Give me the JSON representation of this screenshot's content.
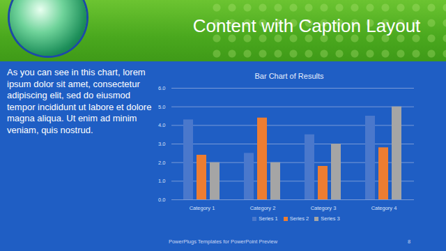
{
  "slide": {
    "title": "Content with Caption Layout",
    "caption": "As you can see in this chart, lorem ipsum dolor sit amet, consectetur adipiscing elit, sed do eiusmod tempor incididunt ut labore et dolore magna aliqua. Ut enim ad minim veniam, quis nostrud.",
    "footer": "PowerPlugs Templates for PowerPoint Preview",
    "page": "8"
  },
  "chart_data": {
    "type": "bar",
    "title": "Bar Chart of Results",
    "categories": [
      "Category 1",
      "Category 2",
      "Category 3",
      "Category 4"
    ],
    "series": [
      {
        "name": "Series 1",
        "color": "#4a78cc",
        "values": [
          4.3,
          2.5,
          3.5,
          4.5
        ]
      },
      {
        "name": "Series 2",
        "color": "#ed7d31",
        "values": [
          2.4,
          4.4,
          1.8,
          2.8
        ]
      },
      {
        "name": "Series 3",
        "color": "#a5a5a5",
        "values": [
          2,
          2,
          3,
          5
        ]
      }
    ],
    "ylim": [
      0,
      6
    ],
    "yticks": [
      0,
      1,
      2,
      3,
      4,
      5,
      6
    ],
    "grid": true,
    "legend": "bottom"
  }
}
